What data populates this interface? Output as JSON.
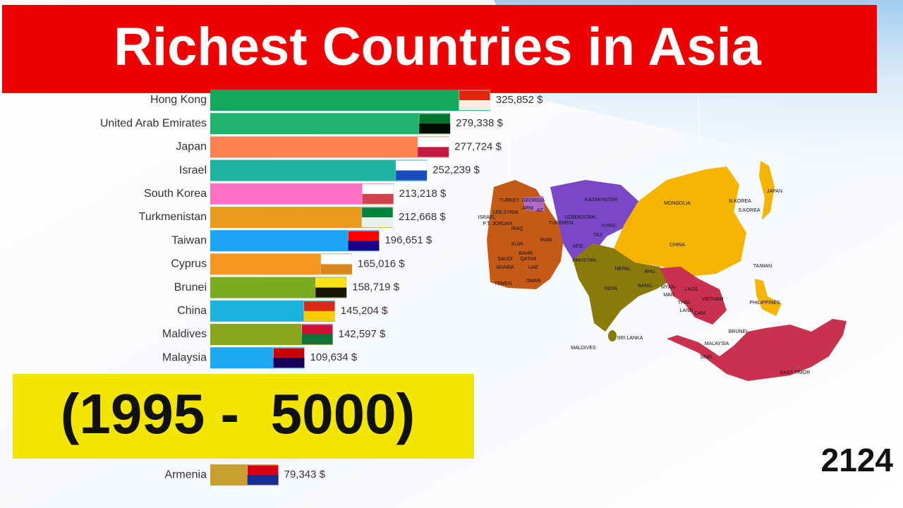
{
  "chart_data": {
    "type": "bar",
    "orientation": "horizontal",
    "title": "Richest Countries in Asia",
    "subtitle": "(1995 -  5000)",
    "year": "2124",
    "categories": [
      "Hong Kong",
      "United Arab Emirates",
      "Japan",
      "Israel",
      "South Korea",
      "Turkmenistan",
      "Taiwan",
      "Cyprus",
      "Brunei",
      "China",
      "Maldives",
      "Malaysia",
      null,
      null,
      null,
      null,
      "Armenia"
    ],
    "values": [
      325852,
      279338,
      277724,
      252239,
      213218,
      212668,
      196651,
      165016,
      158719,
      145204,
      142597,
      109634,
      null,
      null,
      null,
      null,
      79343
    ],
    "value_labels": [
      "325,852 $",
      "279,338 $",
      "277,724 $",
      "252,239 $",
      "213,218 $",
      "212,668 $",
      "196,651 $",
      "165,016 $",
      "158,719 $",
      "145,204 $",
      "142,597 $",
      "109,634 $",
      null,
      null,
      null,
      null,
      "79,343 $"
    ],
    "colors": [
      "#12a95c",
      "#1fb36c",
      "#ff8050",
      "#1db5a2",
      "#ff6fc4",
      "#e89a1e",
      "#1ea4f7",
      "#f5961e",
      "#7aab1e",
      "#1ab2de",
      "#8aa61e",
      "#1ea8f2",
      null,
      null,
      null,
      null,
      "#c9a030"
    ],
    "xlim": [
      0,
      340000
    ],
    "map_labels": [
      "TURKEY",
      "GEORGIA",
      "ARM",
      "AZ",
      "LEB.",
      "SYRIA",
      "ISRAEL",
      "P.T.",
      "JORDAN",
      "IRAQ",
      "IRAN",
      "KUW.",
      "BAHR.",
      "QATAR",
      "SAUDI",
      "ARABIA",
      "UAE",
      "YEMEN",
      "OMAN",
      "KAZAKHSTAN",
      "UZBEKISTAN",
      "TURKMEN.",
      "KYRG.",
      "TAJ.",
      "AFG.",
      "PAKISTAN",
      "MONGOLIA",
      "CHINA",
      "N.KOREA",
      "S.KOREA",
      "JAPAN",
      "TAIWAN",
      "NEPAL",
      "BHU.",
      "BANG.",
      "INDIA",
      "SRI LANKA",
      "MALDIVES",
      "MYAN-",
      "MAR",
      "LAOS",
      "VIETNAM",
      "THAI-",
      "LAND",
      "CAM.",
      "PHILIPPINES",
      "BRUNEI",
      "MALAYSIA",
      "SING.",
      "EAST TIMOR"
    ]
  }
}
